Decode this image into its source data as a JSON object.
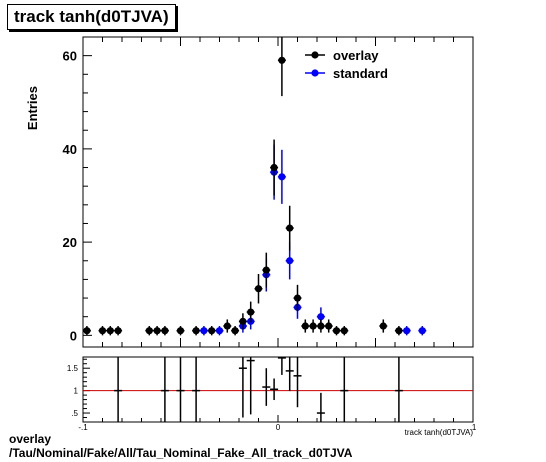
{
  "title": "track tanh(d0TJVA)",
  "caption": {
    "line1": "overlay",
    "line2": "/Tau/Nominal/Fake/All/Tau_Nominal_Fake_All_track_d0TJVA"
  },
  "chart_data": [
    {
      "type": "scatter",
      "title": "track tanh(d0TJVA)",
      "xlabel": "track tanh(d0TJVA)",
      "ylabel": "Entries",
      "xlim": [
        -0.1,
        0.1
      ],
      "ylim": [
        -2.5,
        64
      ],
      "y_ticks": [
        0,
        20,
        40,
        60
      ],
      "legend": "top-right",
      "series": [
        {
          "name": "overlay",
          "color": "#000000",
          "points": [
            {
              "x": -0.098,
              "y": 1,
              "err": 1
            },
            {
              "x": -0.09,
              "y": 1,
              "err": 1
            },
            {
              "x": -0.086,
              "y": 1,
              "err": 1
            },
            {
              "x": -0.082,
              "y": 1,
              "err": 1
            },
            {
              "x": -0.066,
              "y": 1,
              "err": 1
            },
            {
              "x": -0.062,
              "y": 1,
              "err": 1
            },
            {
              "x": -0.058,
              "y": 1,
              "err": 1
            },
            {
              "x": -0.05,
              "y": 1,
              "err": 1
            },
            {
              "x": -0.042,
              "y": 1,
              "err": 1
            },
            {
              "x": -0.034,
              "y": 1,
              "err": 1
            },
            {
              "x": -0.026,
              "y": 2,
              "err": 1.41
            },
            {
              "x": -0.022,
              "y": 1,
              "err": 1
            },
            {
              "x": -0.018,
              "y": 3,
              "err": 1.73
            },
            {
              "x": -0.014,
              "y": 5,
              "err": 2.24
            },
            {
              "x": -0.01,
              "y": 10,
              "err": 3.16
            },
            {
              "x": -0.006,
              "y": 14,
              "err": 3.74
            },
            {
              "x": -0.002,
              "y": 36,
              "err": 6
            },
            {
              "x": 0.002,
              "y": 59,
              "err": 7.68
            },
            {
              "x": 0.006,
              "y": 23,
              "err": 4.8
            },
            {
              "x": 0.01,
              "y": 8,
              "err": 2.83
            },
            {
              "x": 0.014,
              "y": 2,
              "err": 1.41
            },
            {
              "x": 0.018,
              "y": 2,
              "err": 1.41
            },
            {
              "x": 0.022,
              "y": 2,
              "err": 1.41
            },
            {
              "x": 0.026,
              "y": 2,
              "err": 1.41
            },
            {
              "x": 0.03,
              "y": 1,
              "err": 1
            },
            {
              "x": 0.034,
              "y": 1,
              "err": 1
            },
            {
              "x": 0.054,
              "y": 2,
              "err": 1.41
            },
            {
              "x": 0.062,
              "y": 1,
              "err": 1
            }
          ]
        },
        {
          "name": "standard",
          "color": "#0000ff",
          "points": [
            {
              "x": -0.038,
              "y": 1,
              "err": 1
            },
            {
              "x": -0.03,
              "y": 1,
              "err": 1
            },
            {
              "x": -0.018,
              "y": 2,
              "err": 1.41
            },
            {
              "x": -0.014,
              "y": 3,
              "err": 1.73
            },
            {
              "x": -0.006,
              "y": 13,
              "err": 3.6
            },
            {
              "x": -0.002,
              "y": 35,
              "err": 5.9
            },
            {
              "x": 0.002,
              "y": 34,
              "err": 5.8
            },
            {
              "x": 0.006,
              "y": 16,
              "err": 4
            },
            {
              "x": 0.01,
              "y": 6,
              "err": 2.45
            },
            {
              "x": 0.022,
              "y": 4,
              "err": 2
            },
            {
              "x": 0.066,
              "y": 1,
              "err": 1
            },
            {
              "x": 0.074,
              "y": 1,
              "err": 1
            }
          ]
        }
      ]
    },
    {
      "type": "scatter",
      "title": "",
      "xlabel": "track tanh(d0TJVA)",
      "ylabel": "",
      "xlim": [
        -0.1,
        0.1
      ],
      "ylim": [
        0.3,
        1.75
      ],
      "y_ticks": [
        0.5,
        1,
        1.5
      ],
      "x_ticks": [
        -0.1,
        0,
        0.1
      ],
      "reference_line": {
        "y": 1,
        "color": "#cc0000"
      },
      "points": [
        {
          "x": -0.082,
          "y": 1.0,
          "err": 1.4
        },
        {
          "x": -0.058,
          "y": 1.0,
          "err": 1.4
        },
        {
          "x": -0.05,
          "y": 1.0,
          "err": 1.4
        },
        {
          "x": -0.042,
          "y": 1.0,
          "err": 1.4
        },
        {
          "x": -0.018,
          "y": 1.5,
          "err": 1.1
        },
        {
          "x": -0.014,
          "y": 1.67,
          "err": 1.2
        },
        {
          "x": -0.006,
          "y": 1.08,
          "err": 0.42
        },
        {
          "x": -0.002,
          "y": 1.03,
          "err": 0.24
        },
        {
          "x": 0.002,
          "y": 1.73,
          "err": 0.38
        },
        {
          "x": 0.006,
          "y": 1.44,
          "err": 0.45
        },
        {
          "x": 0.01,
          "y": 1.33,
          "err": 0.7
        },
        {
          "x": 0.022,
          "y": 0.5,
          "err": 0.45
        },
        {
          "x": 0.034,
          "y": 1.0,
          "err": 1.4
        },
        {
          "x": 0.062,
          "y": 1.0,
          "err": 1.4
        }
      ]
    }
  ]
}
